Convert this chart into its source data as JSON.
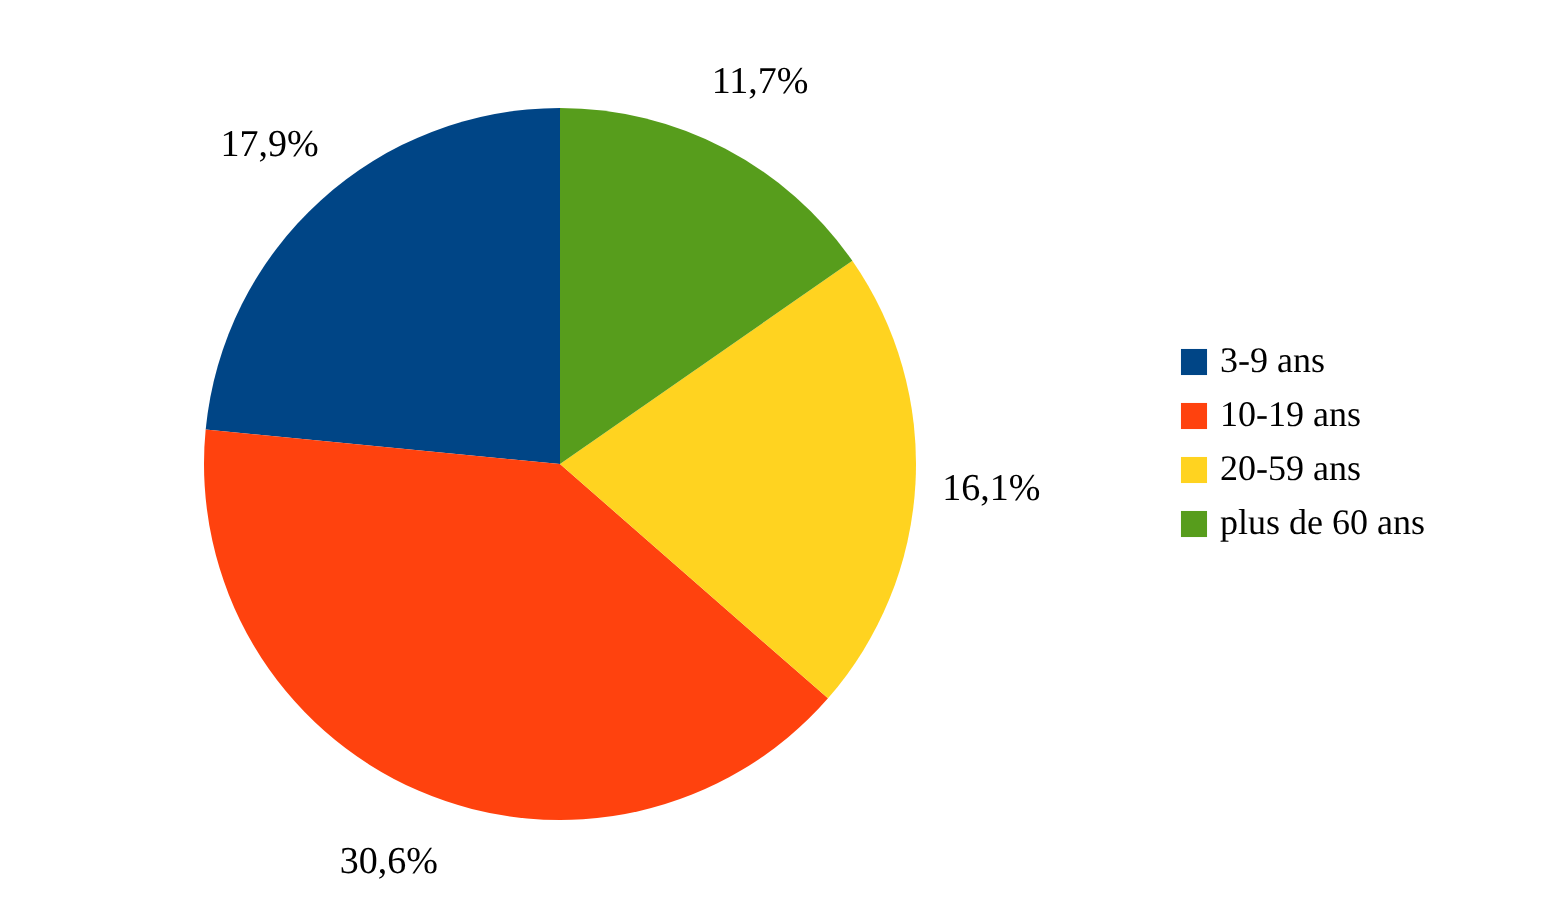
{
  "chart_data": {
    "type": "pie",
    "categories": [
      "3-9 ans",
      "10-19 ans",
      "20-59 ans",
      "plus de 60 ans"
    ],
    "values": [
      17.9,
      30.6,
      16.1,
      11.7
    ],
    "colors": [
      "#004586",
      "#ff420e",
      "#ffd320",
      "#579d1c"
    ],
    "value_labels": [
      "17,9%",
      "30,6%",
      "16,1%",
      "11,7%"
    ],
    "legend": "right"
  }
}
